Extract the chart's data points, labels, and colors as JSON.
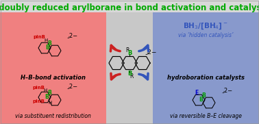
{
  "title": "A doubly reduced arylborane in bond activation and catalysis",
  "title_color": "#00aa00",
  "title_fontsize": 8.5,
  "bg_left": "#f08080",
  "bg_right": "#8899cc",
  "bg_center": "#c8c8c8",
  "bg_title": "#d8d8d8",
  "left_label1": "H–B-bond activation",
  "left_label2": "via substituent redistribution",
  "right_label1": "hydroboration catalysts",
  "right_label2": "via reversible B–E cleavage",
  "right_top_formula": "BH₃/[BH₄]⁻",
  "right_top_sub": "via ‘hidden catalysis’",
  "arrow_blue": "#3355bb",
  "arrow_red": "#cc2222",
  "green_B": "#009900",
  "blue_E": "#0000cc",
  "charge": "⌟2−"
}
